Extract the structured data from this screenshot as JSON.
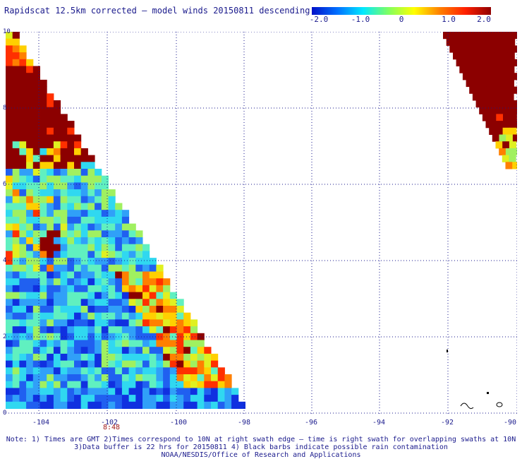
{
  "title": "Rapidscat 12.5km corrected – model winds 20150811 descending",
  "colorbar": {
    "ticks": [
      "-2.0",
      "-1.0",
      "0",
      "1.0",
      "2.0"
    ],
    "stops": [
      "#0010c8",
      "#0070ff",
      "#00e8ff",
      "#80ff60",
      "#ffff00",
      "#ff8000",
      "#ff2000",
      "#900000"
    ]
  },
  "x_labels": [
    "-104",
    "-102",
    "-100",
    "-98",
    "-96",
    "-94",
    "-92",
    "-90"
  ],
  "y_labels": [
    "10",
    "8",
    "6",
    "4",
    "2",
    "0"
  ],
  "time_label": "8:48",
  "notes": [
    "Note: 1) Times are GMT 2)Times correspond to 10N at right swath edge – time is right swath for overlapping swaths at 10N",
    "3)Data buffer is 22 hrs for 20150811 4) Black barbs indicate possible rain contamination",
    "NOAA/NESDIS/Office of Research and Applications"
  ],
  "map": {
    "extent": {
      "lon": [
        -105,
        -90
      ],
      "lat": [
        0,
        10
      ]
    },
    "colors": {
      "blue": "#1020d0",
      "cyan": "#30c8f0",
      "dark_red": "#8c0000",
      "grid": "#1a1a8c"
    }
  }
}
